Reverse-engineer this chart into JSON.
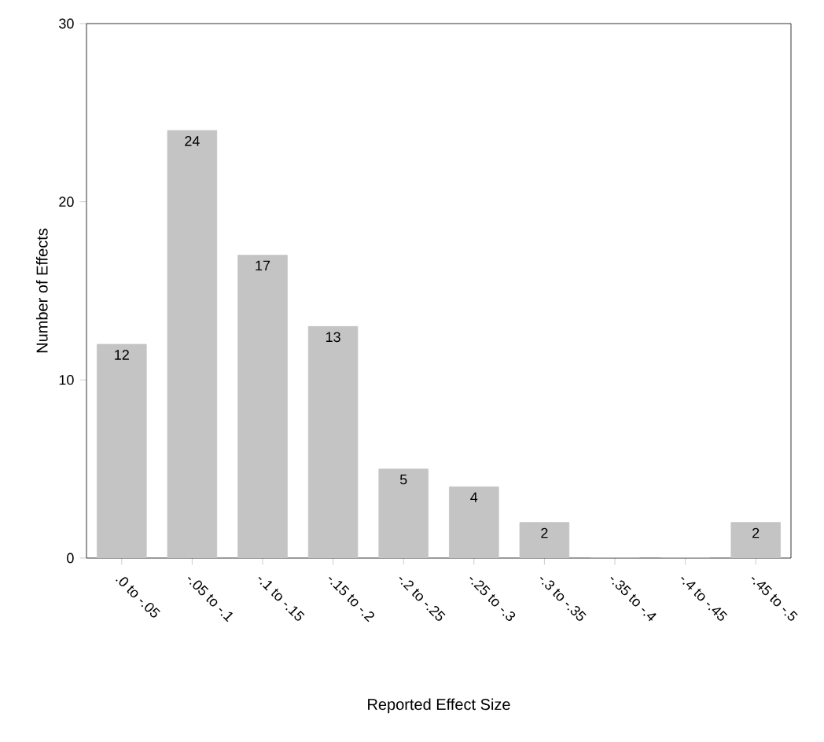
{
  "chart_data": {
    "type": "bar",
    "xlabel": "Reported Effect Size",
    "ylabel": "Number of Effects",
    "categories": [
      ".0 to -.05",
      "-.05 to -.1",
      "-.1 to -.15",
      "-.15 to -.2",
      "-.2 to -.25",
      "-.25 to -.3",
      "-.3 to -.35",
      "-.35 to -.4",
      "-.4 to -.45",
      "-.45 to -.5"
    ],
    "values": [
      12,
      24,
      17,
      13,
      5,
      4,
      2,
      0,
      0,
      2
    ],
    "value_labels": [
      "12",
      "24",
      "17",
      "13",
      "5",
      "4",
      "2",
      null,
      null,
      "2"
    ],
    "color": "#c4c4c4",
    "ylim": [
      0,
      30
    ],
    "yticks": [
      0,
      10,
      20,
      30
    ]
  }
}
